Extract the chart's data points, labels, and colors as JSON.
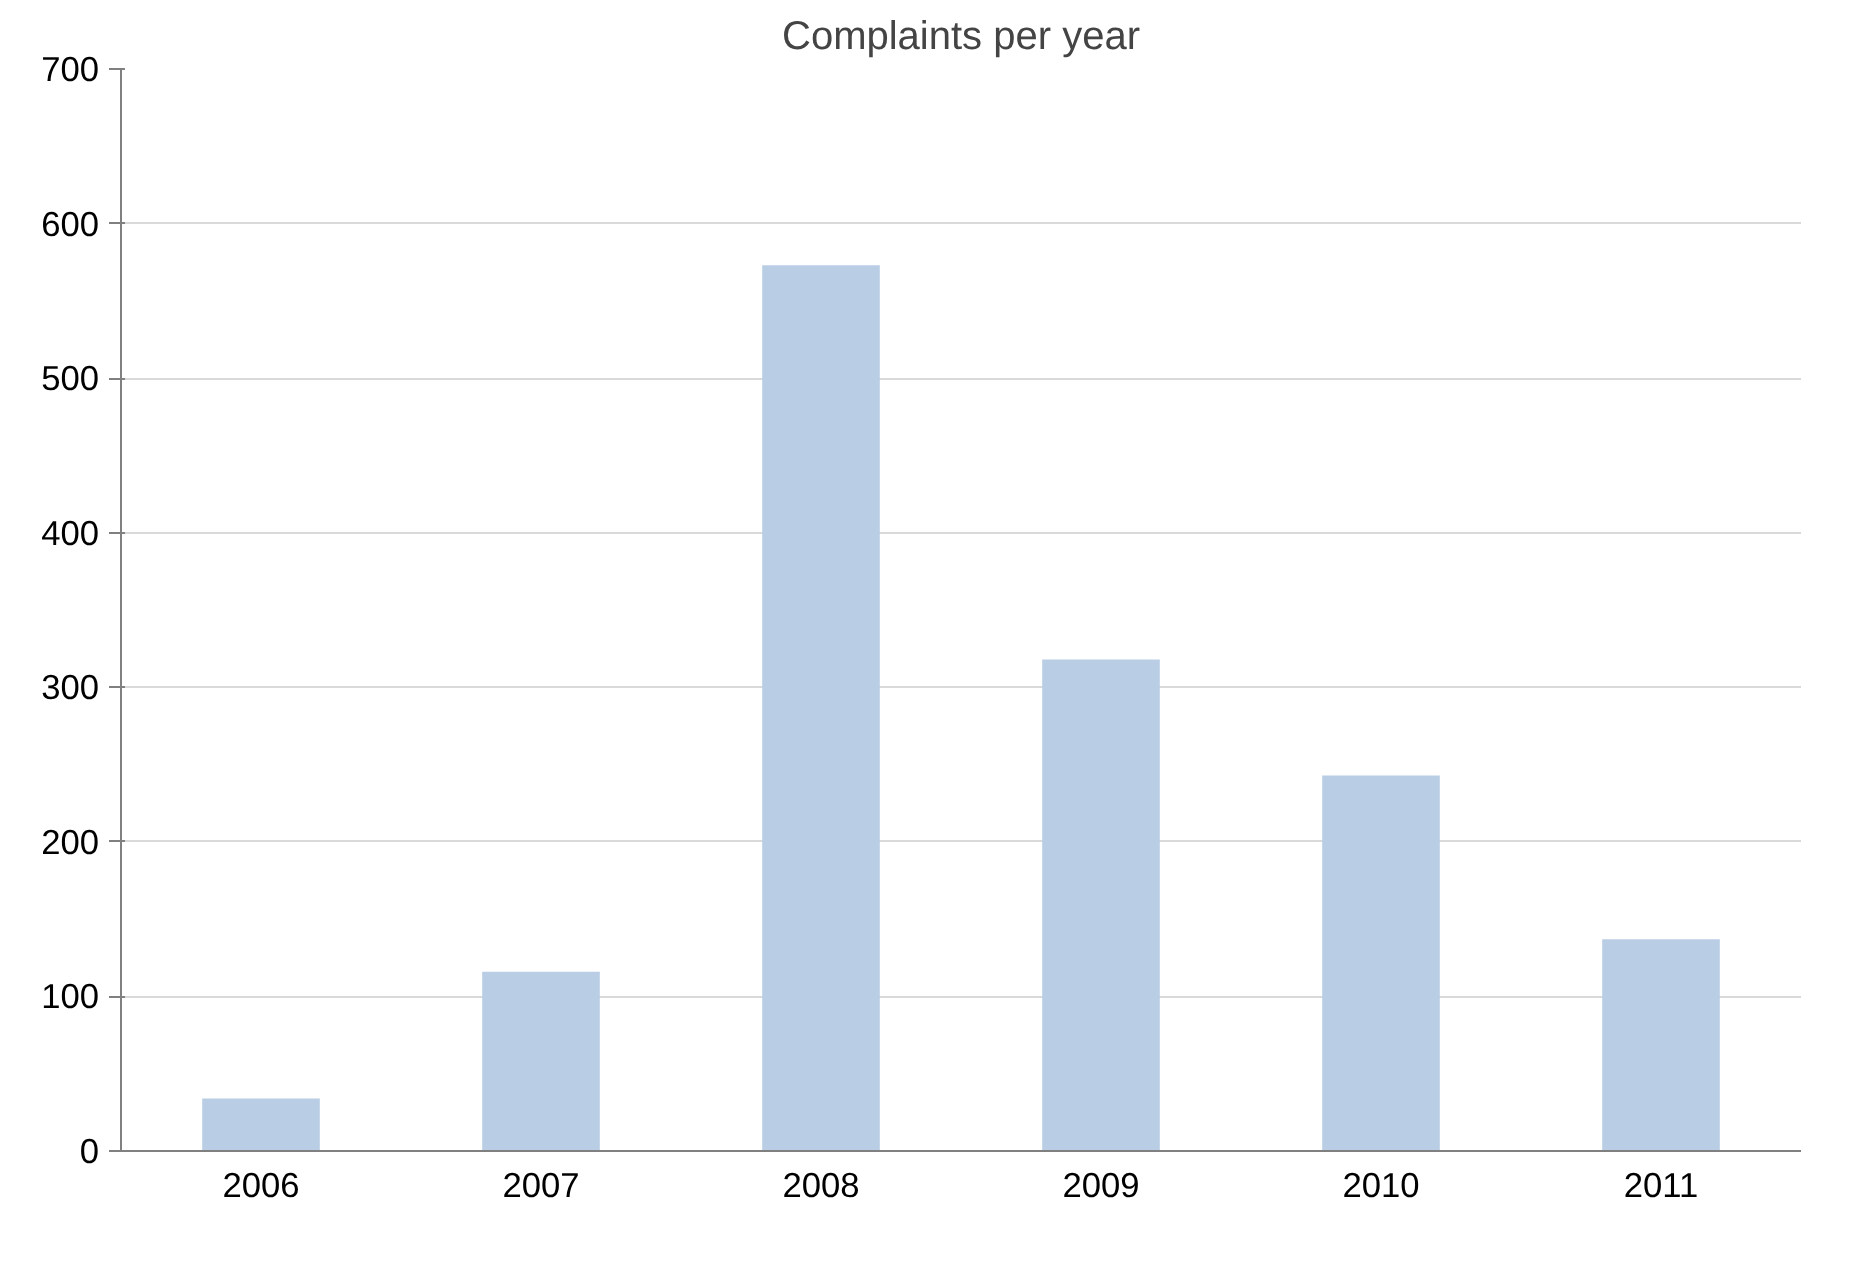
{
  "chart_data": {
    "type": "bar",
    "title": "Complaints per year",
    "categories": [
      "2006",
      "2007",
      "2008",
      "2009",
      "2010",
      "2011"
    ],
    "values": [
      34,
      116,
      573,
      318,
      243,
      137
    ],
    "color": "#b9cde5",
    "ylim": [
      0,
      700
    ],
    "yticks": [
      0,
      100,
      200,
      300,
      400,
      500,
      600,
      700
    ],
    "grid": "y"
  }
}
